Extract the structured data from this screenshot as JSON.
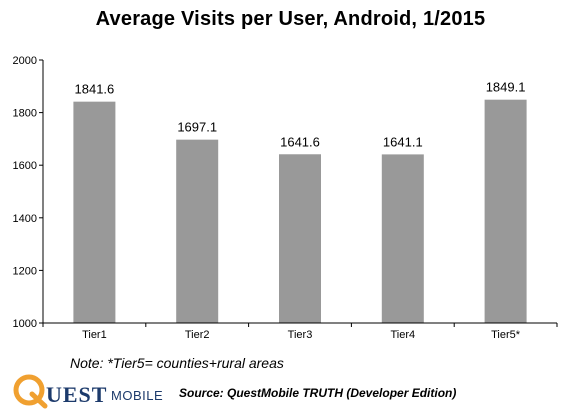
{
  "title": "Average Visits per User, Android, 1/2015",
  "note": "Note: *Tier5= counties+rural areas",
  "source": "Source: QuestMobile TRUTH (Developer Edition)",
  "logo": {
    "main": "UEST",
    "sub": "MOBILE",
    "icon": "quest-mobile-q-logo"
  },
  "colors": {
    "bar": "#999999",
    "axis": "#000000",
    "logo_orange": "#f0a030",
    "logo_blue": "#1c3a6b"
  },
  "chart_data": {
    "type": "bar",
    "title": "Average Visits per User, Android, 1/2015",
    "categories": [
      "Tier1",
      "Tier2",
      "Tier3",
      "Tier4",
      "Tier5*"
    ],
    "values": [
      1841.6,
      1697.1,
      1641.6,
      1641.1,
      1849.1
    ],
    "value_labels": [
      "1841.6",
      "1697.1",
      "1641.6",
      "1641.1",
      "1849.1"
    ],
    "ylim": [
      1000,
      2000
    ],
    "yticks": [
      1000,
      1200,
      1400,
      1600,
      1800,
      2000
    ],
    "xlabel": "",
    "ylabel": "",
    "grid": false,
    "legend": "none"
  }
}
